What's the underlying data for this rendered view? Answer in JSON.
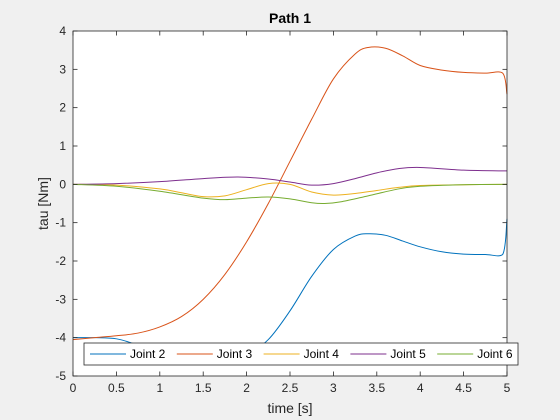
{
  "chart_data": {
    "type": "line",
    "title": "Path 1",
    "xlabel": "time [s]",
    "ylabel": "tau [Nm]",
    "xlim": [
      0,
      5
    ],
    "ylim": [
      -5,
      4
    ],
    "xticks": [
      0,
      0.5,
      1,
      1.5,
      2,
      2.5,
      3,
      3.5,
      4,
      4.5,
      5
    ],
    "yticks": [
      -5,
      -4,
      -3,
      -2,
      -1,
      0,
      1,
      2,
      3,
      4
    ],
    "xtick_labels": [
      "0",
      "0.5",
      "1",
      "1.5",
      "2",
      "2.5",
      "3",
      "3.5",
      "4",
      "4.5",
      "5"
    ],
    "ytick_labels": [
      "-5",
      "-4",
      "-3",
      "-2",
      "-1",
      "0",
      "1",
      "2",
      "3",
      "4"
    ],
    "grid": false,
    "legend_position": "bottom, horizontal",
    "series": [
      {
        "name": "Joint 2",
        "color": "#0072BD",
        "x": [
          0,
          0.25,
          0.5,
          0.75,
          1.0,
          1.25,
          1.5,
          1.75,
          2.0,
          2.25,
          2.5,
          2.75,
          3.0,
          3.25,
          3.4,
          3.6,
          3.8,
          4.0,
          4.25,
          4.5,
          4.75,
          4.95,
          5.0
        ],
        "y": [
          -4.0,
          -4.0,
          -4.03,
          -4.2,
          -4.45,
          -4.62,
          -4.68,
          -4.65,
          -4.45,
          -4.05,
          -3.3,
          -2.4,
          -1.7,
          -1.35,
          -1.29,
          -1.33,
          -1.48,
          -1.63,
          -1.76,
          -1.82,
          -1.83,
          -1.83,
          -0.9
        ]
      },
      {
        "name": "Joint 3",
        "color": "#D95319",
        "x": [
          0,
          0.25,
          0.5,
          0.75,
          1.0,
          1.25,
          1.5,
          1.75,
          2.0,
          2.25,
          2.5,
          2.75,
          3.0,
          3.25,
          3.4,
          3.6,
          3.8,
          4.0,
          4.25,
          4.5,
          4.75,
          4.95,
          5.0
        ],
        "y": [
          -4.05,
          -4.0,
          -3.95,
          -3.88,
          -3.72,
          -3.45,
          -3.0,
          -2.35,
          -1.5,
          -0.5,
          0.6,
          1.7,
          2.75,
          3.4,
          3.57,
          3.55,
          3.35,
          3.1,
          2.98,
          2.92,
          2.9,
          2.9,
          2.35
        ]
      },
      {
        "name": "Joint 4",
        "color": "#EDB120",
        "x": [
          0,
          0.5,
          1.0,
          1.25,
          1.5,
          1.75,
          2.0,
          2.25,
          2.5,
          2.75,
          3.0,
          3.25,
          3.5,
          3.75,
          4.0,
          4.5,
          5.0
        ],
        "y": [
          0,
          -0.02,
          -0.12,
          -0.22,
          -0.32,
          -0.3,
          -0.14,
          0.02,
          0.0,
          -0.2,
          -0.28,
          -0.24,
          -0.16,
          -0.08,
          -0.03,
          -0.01,
          0.0
        ]
      },
      {
        "name": "Joint 5",
        "color": "#7E2F8E",
        "x": [
          0,
          0.5,
          1.0,
          1.5,
          1.9,
          2.25,
          2.5,
          2.75,
          3.0,
          3.25,
          3.5,
          3.75,
          4.0,
          4.5,
          5.0
        ],
        "y": [
          0,
          0.02,
          0.07,
          0.15,
          0.19,
          0.14,
          0.06,
          -0.02,
          0.02,
          0.15,
          0.3,
          0.41,
          0.44,
          0.37,
          0.35
        ]
      },
      {
        "name": "Joint 6",
        "color": "#77AC30",
        "x": [
          0,
          0.5,
          1.0,
          1.5,
          1.75,
          2.0,
          2.25,
          2.5,
          2.75,
          2.9,
          3.1,
          3.4,
          3.75,
          4.0,
          4.5,
          5.0
        ],
        "y": [
          0,
          -0.05,
          -0.18,
          -0.36,
          -0.4,
          -0.36,
          -0.33,
          -0.38,
          -0.48,
          -0.5,
          -0.45,
          -0.3,
          -0.12,
          -0.05,
          -0.01,
          0.0
        ]
      }
    ]
  }
}
